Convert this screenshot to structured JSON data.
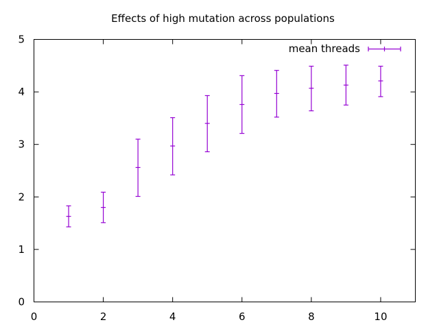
{
  "chart_data": {
    "type": "scatter",
    "title": "Effects of high mutation across populations",
    "xlabel": "",
    "ylabel": "",
    "xlim": [
      0,
      11
    ],
    "ylim": [
      0,
      5
    ],
    "xticks": [
      0,
      2,
      4,
      6,
      8,
      10
    ],
    "yticks": [
      0,
      1,
      2,
      3,
      4,
      5
    ],
    "grid": false,
    "legend_position": "top-right",
    "series": [
      {
        "name": "mean threads",
        "style": "errorbars",
        "color": "#9400d3",
        "points": [
          {
            "x": 1,
            "y": 1.63,
            "ylow": 1.43,
            "yhigh": 1.83
          },
          {
            "x": 2,
            "y": 1.8,
            "ylow": 1.51,
            "yhigh": 2.09
          },
          {
            "x": 3,
            "y": 2.56,
            "ylow": 2.01,
            "yhigh": 3.1
          },
          {
            "x": 4,
            "y": 2.97,
            "ylow": 2.42,
            "yhigh": 3.51
          },
          {
            "x": 5,
            "y": 3.4,
            "ylow": 2.86,
            "yhigh": 3.93
          },
          {
            "x": 6,
            "y": 3.76,
            "ylow": 3.21,
            "yhigh": 4.31
          },
          {
            "x": 7,
            "y": 3.97,
            "ylow": 3.52,
            "yhigh": 4.41
          },
          {
            "x": 8,
            "y": 4.07,
            "ylow": 3.64,
            "yhigh": 4.49
          },
          {
            "x": 9,
            "y": 4.13,
            "ylow": 3.75,
            "yhigh": 4.51
          },
          {
            "x": 10,
            "y": 4.21,
            "ylow": 3.91,
            "yhigh": 4.49
          }
        ]
      }
    ]
  }
}
